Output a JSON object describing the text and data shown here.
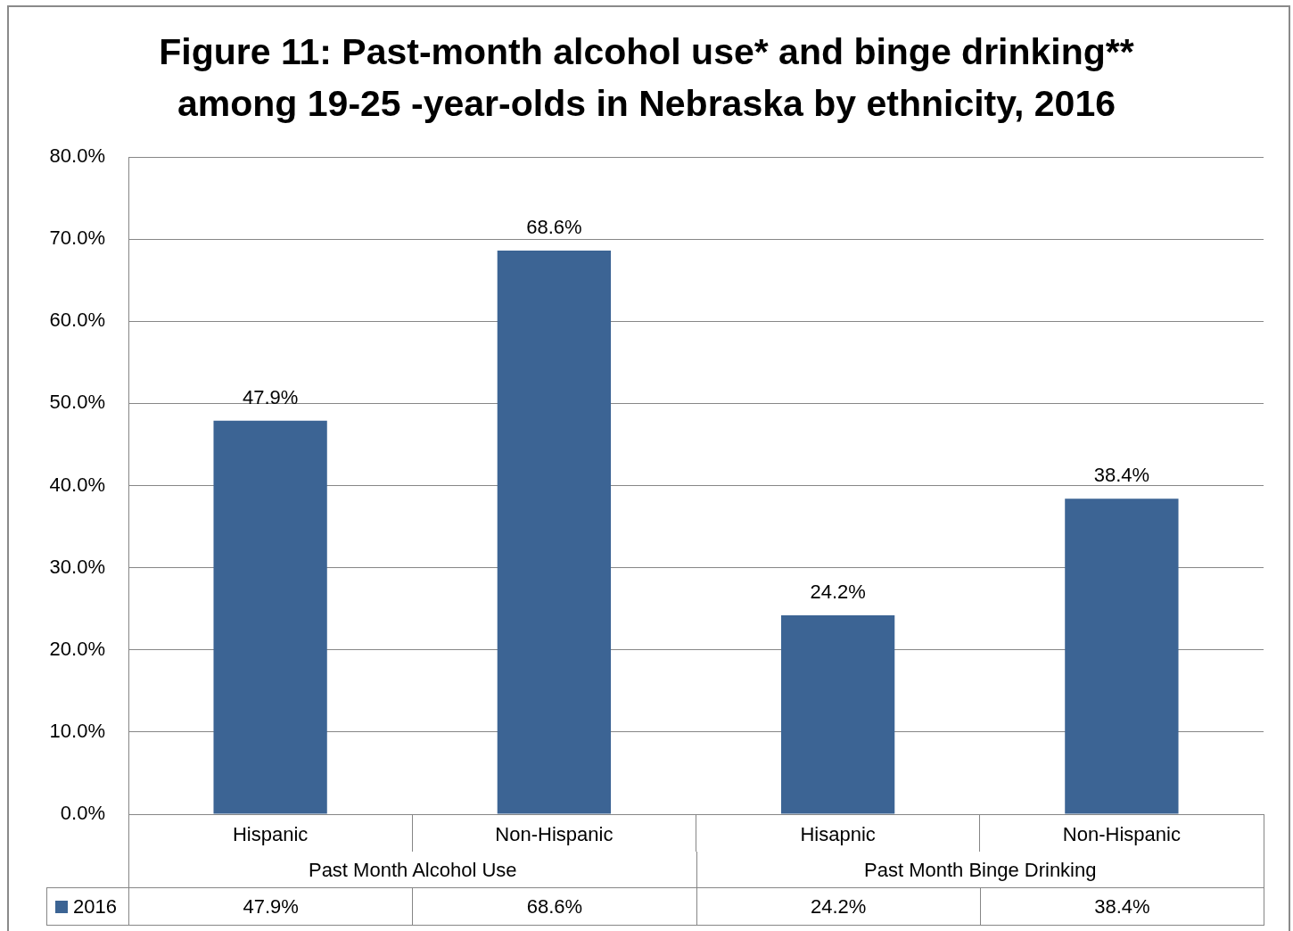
{
  "chart_data": {
    "type": "bar",
    "title": "Figure 11: Past-month alcohol use* and binge drinking** among 19-25 -year-olds in Nebraska by ethnicity, 2016",
    "categories": [
      "Hispanic",
      "Non-Hispanic",
      "Hisapnic",
      "Non-Hispanic"
    ],
    "series": [
      {
        "name": "2016",
        "color": "#3c6494",
        "values": [
          47.9,
          68.6,
          24.2,
          38.4
        ],
        "value_labels": [
          "47.9%",
          "68.6%",
          "24.2%",
          "38.4%"
        ]
      }
    ],
    "ylim": [
      0,
      80
    ],
    "yticks": [
      {
        "value": 0,
        "label": "0.0%"
      },
      {
        "value": 10,
        "label": "10.0%"
      },
      {
        "value": 20,
        "label": "20.0%"
      },
      {
        "value": 30,
        "label": "30.0%"
      },
      {
        "value": 40,
        "label": "40.0%"
      },
      {
        "value": 50,
        "label": "50.0%"
      },
      {
        "value": 60,
        "label": "60.0%"
      },
      {
        "value": 70,
        "label": "70.0%"
      },
      {
        "value": 80,
        "label": "80.0%"
      }
    ],
    "grid": "y",
    "legend": "bottom left",
    "annotations": [
      "Past Month Alcohol Use",
      "Past Month Binge Drinking"
    ]
  }
}
